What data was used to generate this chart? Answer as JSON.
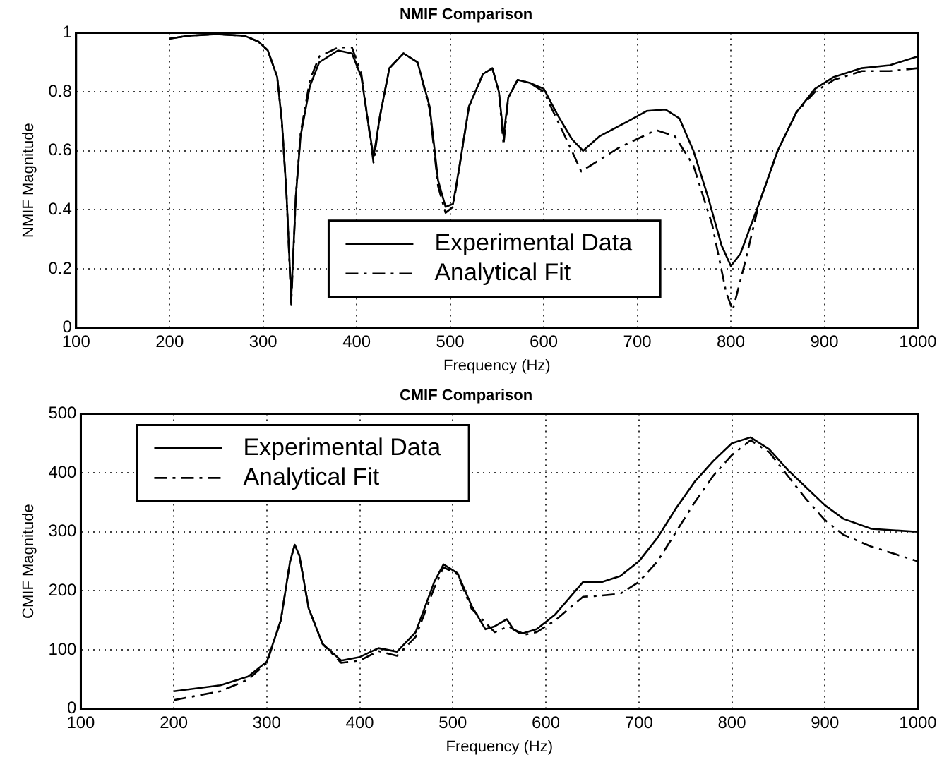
{
  "chart_data": [
    {
      "type": "line",
      "title": "NMIF Comparison",
      "xlabel": "Frequency (Hz)",
      "ylabel": "NMIF Magnitude",
      "xlim": [
        100,
        1000
      ],
      "xticks": [
        100,
        200,
        300,
        400,
        500,
        600,
        700,
        800,
        900,
        1000
      ],
      "ylim": [
        0,
        1
      ],
      "yticks": [
        0,
        0.2,
        0.4,
        0.6,
        0.8,
        1
      ],
      "grid": true,
      "legend": "bottom",
      "marker": "none",
      "series": [
        {
          "name": "Experimental Data",
          "color": "#000000",
          "line_style": "solid",
          "x": [
            200,
            220,
            250,
            280,
            295,
            305,
            315,
            320,
            325,
            330,
            335,
            340,
            350,
            360,
            380,
            395,
            405,
            412,
            418,
            425,
            435,
            450,
            465,
            478,
            487,
            495,
            503,
            510,
            520,
            535,
            545,
            552,
            557,
            562,
            572,
            585,
            600,
            615,
            630,
            642,
            660,
            690,
            710,
            730,
            745,
            760,
            775,
            790,
            800,
            810,
            830,
            850,
            870,
            890,
            910,
            940,
            970,
            1000
          ],
          "values": [
            0.98,
            0.99,
            0.995,
            0.99,
            0.97,
            0.94,
            0.85,
            0.7,
            0.45,
            0.1,
            0.45,
            0.65,
            0.82,
            0.9,
            0.94,
            0.93,
            0.85,
            0.7,
            0.58,
            0.72,
            0.88,
            0.93,
            0.9,
            0.75,
            0.5,
            0.41,
            0.42,
            0.55,
            0.75,
            0.86,
            0.88,
            0.8,
            0.65,
            0.78,
            0.84,
            0.83,
            0.81,
            0.72,
            0.64,
            0.6,
            0.65,
            0.7,
            0.735,
            0.74,
            0.71,
            0.6,
            0.45,
            0.28,
            0.21,
            0.25,
            0.42,
            0.6,
            0.73,
            0.81,
            0.85,
            0.88,
            0.89,
            0.92
          ]
        },
        {
          "name": "Analytical Fit",
          "color": "#000000",
          "line_style": "dashed",
          "x": [
            200,
            220,
            250,
            280,
            295,
            305,
            315,
            320,
            325,
            330,
            335,
            340,
            350,
            360,
            380,
            395,
            405,
            412,
            418,
            425,
            435,
            450,
            465,
            478,
            487,
            495,
            503,
            510,
            520,
            535,
            545,
            552,
            557,
            562,
            572,
            585,
            600,
            615,
            630,
            640,
            650,
            680,
            720,
            740,
            760,
            780,
            795,
            802,
            815,
            830,
            850,
            870,
            890,
            910,
            940,
            970,
            1000
          ],
          "values": [
            0.98,
            0.99,
            0.995,
            0.99,
            0.97,
            0.94,
            0.85,
            0.7,
            0.45,
            0.08,
            0.45,
            0.66,
            0.84,
            0.92,
            0.95,
            0.95,
            0.86,
            0.7,
            0.56,
            0.72,
            0.88,
            0.93,
            0.9,
            0.74,
            0.48,
            0.39,
            0.41,
            0.55,
            0.75,
            0.86,
            0.88,
            0.8,
            0.62,
            0.78,
            0.84,
            0.83,
            0.8,
            0.7,
            0.6,
            0.53,
            0.55,
            0.61,
            0.67,
            0.65,
            0.55,
            0.35,
            0.12,
            0.06,
            0.22,
            0.42,
            0.6,
            0.73,
            0.8,
            0.84,
            0.87,
            0.87,
            0.88
          ]
        }
      ]
    },
    {
      "type": "line",
      "title": "CMIF Comparison",
      "xlabel": "Frequency (Hz)",
      "ylabel": "CMIF Magnitude",
      "xlim": [
        100,
        1000
      ],
      "xticks": [
        100,
        200,
        300,
        400,
        500,
        600,
        700,
        800,
        900,
        1000
      ],
      "ylim": [
        0,
        500
      ],
      "yticks": [
        0,
        100,
        200,
        300,
        400,
        500
      ],
      "grid": true,
      "legend": "top left",
      "marker": "none",
      "series": [
        {
          "name": "Experimental Data",
          "color": "#000000",
          "line_style": "solid",
          "x": [
            200,
            250,
            280,
            300,
            315,
            325,
            330,
            335,
            345,
            360,
            380,
            400,
            420,
            440,
            460,
            480,
            490,
            505,
            520,
            535,
            545,
            558,
            565,
            575,
            590,
            610,
            640,
            660,
            680,
            700,
            720,
            740,
            760,
            780,
            800,
            820,
            840,
            860,
            880,
            900,
            920,
            950,
            1000
          ],
          "values": [
            30,
            40,
            55,
            80,
            150,
            250,
            278,
            260,
            170,
            110,
            82,
            88,
            103,
            97,
            130,
            215,
            245,
            230,
            175,
            135,
            140,
            152,
            135,
            128,
            135,
            160,
            215,
            215,
            225,
            250,
            290,
            340,
            385,
            420,
            450,
            460,
            440,
            405,
            375,
            345,
            322,
            305,
            300
          ]
        },
        {
          "name": "Analytical Fit",
          "color": "#000000",
          "line_style": "dashed",
          "x": [
            200,
            250,
            280,
            300,
            315,
            325,
            330,
            335,
            345,
            360,
            380,
            400,
            420,
            440,
            460,
            480,
            490,
            505,
            520,
            545,
            560,
            575,
            590,
            610,
            640,
            660,
            680,
            700,
            720,
            740,
            760,
            780,
            800,
            820,
            840,
            860,
            880,
            900,
            920,
            950,
            1000
          ],
          "values": [
            15,
            30,
            50,
            78,
            150,
            250,
            278,
            260,
            170,
            110,
            78,
            82,
            98,
            90,
            122,
            205,
            240,
            228,
            170,
            130,
            140,
            125,
            130,
            150,
            190,
            192,
            195,
            215,
            250,
            300,
            350,
            395,
            430,
            455,
            435,
            395,
            355,
            320,
            295,
            275,
            250
          ]
        }
      ]
    }
  ]
}
